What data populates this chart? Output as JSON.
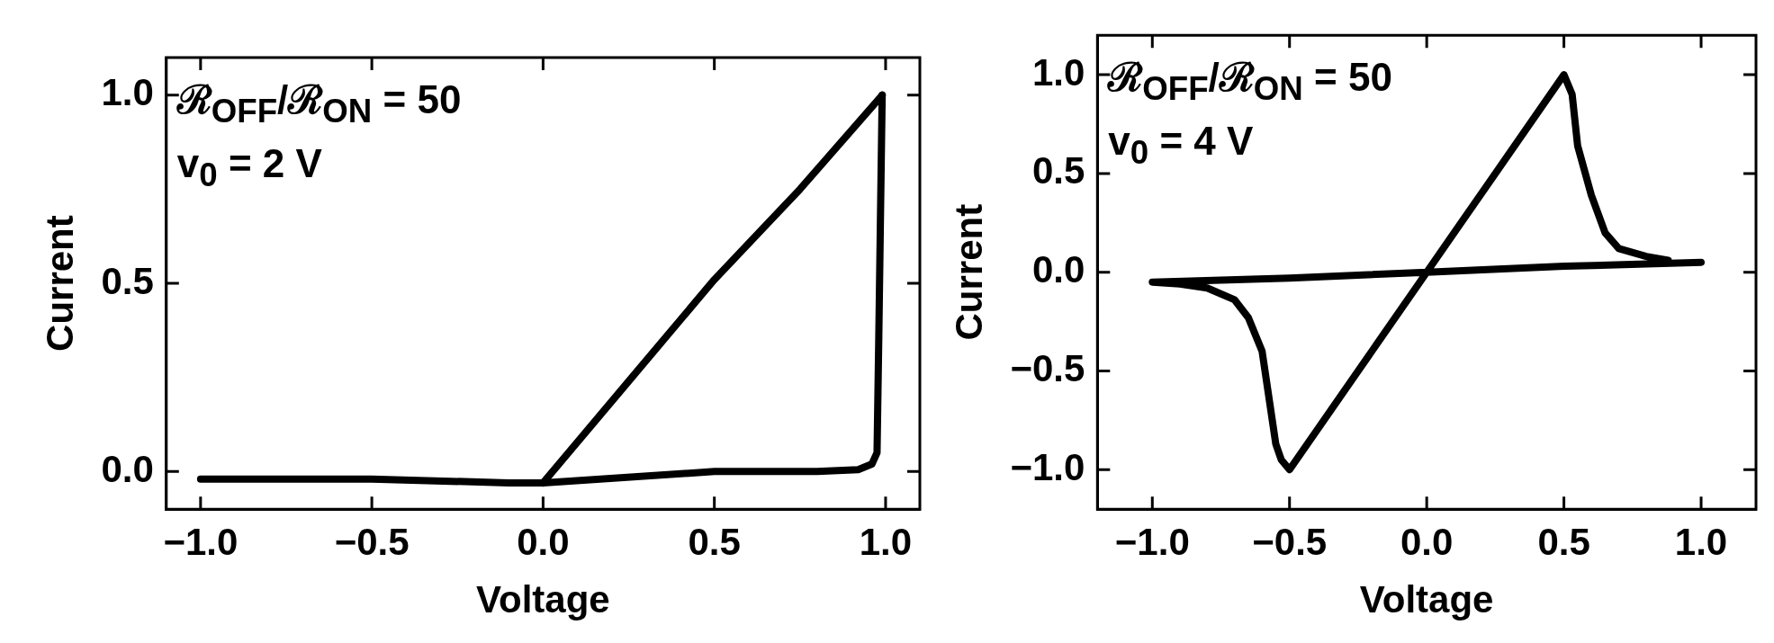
{
  "chart_data": [
    {
      "type": "line",
      "xlabel": "Voltage",
      "ylabel": "Current",
      "xlim": [
        -1.1,
        1.1
      ],
      "ylim": [
        -0.1,
        1.1
      ],
      "xticks": [
        {
          "value": -1,
          "label": "−1.0"
        },
        {
          "value": -0.5,
          "label": "−0.5"
        },
        {
          "value": 0,
          "label": "0.0"
        },
        {
          "value": 0.5,
          "label": "0.5"
        },
        {
          "value": 1,
          "label": "1.0"
        }
      ],
      "yticks": [
        {
          "value": 0,
          "label": "0.0"
        },
        {
          "value": 0.5,
          "label": "0.5"
        },
        {
          "value": 1,
          "label": "1.0"
        }
      ],
      "grid": false,
      "marker": "none",
      "annotations": [
        "ℛ$_{OFF}$/ℛ$_{ON}$ = 50",
        "v$_{0}$ = 2 V"
      ],
      "series": [
        {
          "color": "#000000",
          "x": [
            0,
            0.25,
            0.5,
            0.75,
            0.99
          ],
          "values": [
            -0.03,
            0.24,
            0.51,
            0.75,
            1.0
          ]
        },
        {
          "color": "#000000",
          "x": [
            -1,
            -0.5,
            -0.1,
            0,
            0.5,
            0.8,
            0.92,
            0.96,
            0.975,
            0.98,
            0.99
          ],
          "values": [
            -0.02,
            -0.02,
            -0.03,
            -0.03,
            0.0,
            0.0,
            0.005,
            0.02,
            0.05,
            0.35,
            1.0
          ]
        }
      ]
    },
    {
      "type": "line",
      "xlabel": "Voltage",
      "ylabel": "Current",
      "xlim": [
        -1.2,
        1.2
      ],
      "ylim": [
        -1.2,
        1.2
      ],
      "xticks": [
        {
          "value": -1,
          "label": "−1.0"
        },
        {
          "value": -0.5,
          "label": "−0.5"
        },
        {
          "value": 0,
          "label": "0.0"
        },
        {
          "value": 0.5,
          "label": "0.5"
        },
        {
          "value": 1,
          "label": "1.0"
        }
      ],
      "yticks": [
        {
          "value": -1,
          "label": "−1.0"
        },
        {
          "value": -0.5,
          "label": "−0.5"
        },
        {
          "value": 0,
          "label": "0.0"
        },
        {
          "value": 0.5,
          "label": "0.5"
        },
        {
          "value": 1,
          "label": "1.0"
        }
      ],
      "grid": false,
      "marker": "none",
      "annotations": [
        "ℛ$_{OFF}$/ℛ$_{ON}$ = 50",
        "v$_{0}$ = 4 V"
      ],
      "series": [
        {
          "color": "#000000",
          "x": [
            1,
            0.5,
            0,
            -0.5,
            -1,
            -0.9,
            -0.8,
            -0.7,
            -0.65,
            -0.6,
            -0.55,
            -0.53,
            -0.5,
            -0.25,
            0,
            0.25,
            0.5,
            0.53,
            0.55,
            0.6,
            0.65,
            0.7,
            0.8,
            0.88
          ],
          "values": [
            0.05,
            0.03,
            0,
            -0.03,
            -0.05,
            -0.06,
            -0.08,
            -0.14,
            -0.23,
            -0.4,
            -0.87,
            -0.95,
            -1.0,
            -0.5,
            0,
            0.5,
            1.0,
            0.9,
            0.64,
            0.39,
            0.2,
            0.12,
            0.08,
            0.06
          ]
        }
      ]
    }
  ]
}
